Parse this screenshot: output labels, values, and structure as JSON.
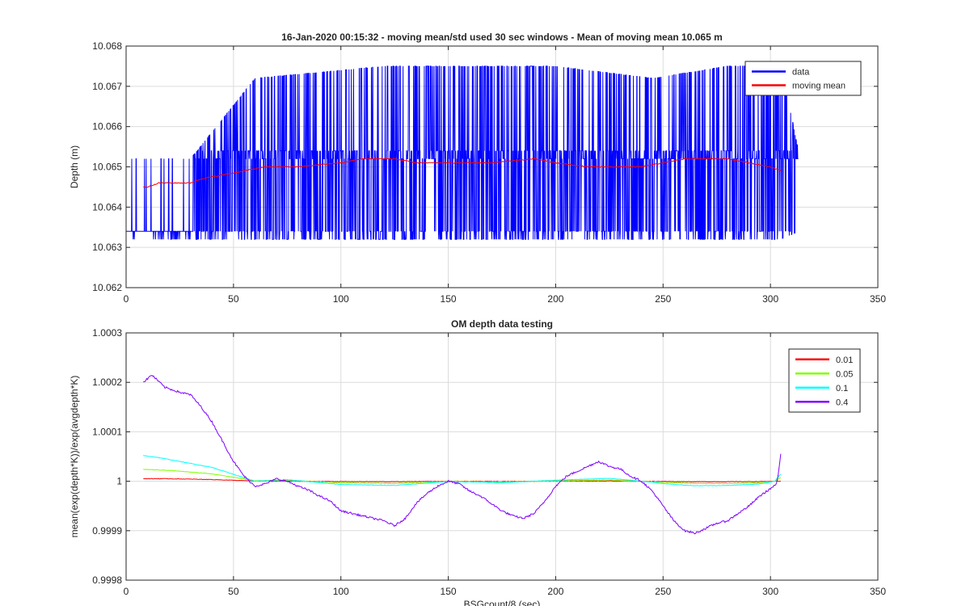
{
  "chart_data": [
    {
      "type": "line",
      "title": "16-Jan-2020 00:15:32 - moving mean/std used 30 sec windows - Mean of moving mean 10.065 m",
      "xlabel": "",
      "ylabel": "Depth (m)",
      "xlim": [
        0,
        350
      ],
      "ylim": [
        10.062,
        10.068
      ],
      "xticks": [
        "0",
        "50",
        "100",
        "150",
        "200",
        "250",
        "300",
        "350"
      ],
      "yticks": [
        "10.062",
        "10.063",
        "10.064",
        "10.065",
        "10.066",
        "10.067",
        "10.068"
      ],
      "grid": true,
      "legend_position": "top-right",
      "series": [
        {
          "name": "data",
          "color": "#0000ff",
          "x_range": [
            0,
            313
          ],
          "levels": [
            10.0632,
            10.0634,
            10.0652,
            10.0654,
            10.0672,
            10.0675
          ],
          "envelope": {
            "x": [
              0,
              30,
              60,
              120,
              200,
              245,
              280,
              305,
              313
            ],
            "low": [
              10.0632,
              10.0632,
              10.0632,
              10.0632,
              10.0632,
              10.0632,
              10.0632,
              10.0632,
              10.0634
            ],
            "high": [
              10.0652,
              10.0652,
              10.0672,
              10.0675,
              10.0675,
              10.0672,
              10.0675,
              10.0675,
              10.0654
            ]
          },
          "spike_density": [
            [
              0,
              0.05
            ],
            [
              30,
              0.35
            ],
            [
              120,
              0.45
            ],
            [
              200,
              0.45
            ],
            [
              245,
              0.3
            ],
            [
              280,
              0.45
            ],
            [
              313,
              0.45
            ]
          ]
        },
        {
          "name": "moving mean",
          "color": "#ff0000",
          "x": [
            8,
            10,
            15,
            20,
            30,
            35,
            45,
            55,
            65,
            80,
            100,
            110,
            125,
            135,
            150,
            170,
            190,
            200,
            215,
            230,
            240,
            250,
            260,
            270,
            280,
            290,
            300,
            305
          ],
          "values": [
            10.0645,
            10.0645,
            10.0646,
            10.0646,
            10.0646,
            10.0647,
            10.0648,
            10.0649,
            10.065,
            10.065,
            10.0651,
            10.0652,
            10.0652,
            10.0651,
            10.0651,
            10.0651,
            10.0652,
            10.0651,
            10.065,
            10.065,
            10.065,
            10.0651,
            10.0652,
            10.0652,
            10.0652,
            10.0651,
            10.065,
            10.0649
          ]
        }
      ]
    },
    {
      "type": "line",
      "title": "OM depth data testing",
      "xlabel": "BSGcount/8 (sec)",
      "ylabel": "mean(exp(depth*K))/exp(avgdepth*K)",
      "xlim": [
        0,
        350
      ],
      "ylim": [
        0.9998,
        1.0003
      ],
      "xticks": [
        "0",
        "50",
        "100",
        "150",
        "200",
        "250",
        "300",
        "350"
      ],
      "yticks": [
        "0.9998",
        "0.9999",
        "1",
        "1.0001",
        "1.0002",
        "1.0003"
      ],
      "grid": true,
      "legend_position": "top-right",
      "series": [
        {
          "name": "0.01",
          "color": "#ff0000",
          "x": [
            8,
            20,
            40,
            50,
            60,
            75,
            100,
            125,
            150,
            175,
            200,
            225,
            240,
            255,
            265,
            280,
            295,
            302,
            305
          ],
          "values": [
            1.0000052,
            1.000005,
            1.0000035,
            1.000002,
            1.0000005,
            1.0000003,
            0.9999993,
            0.999999,
            1.0,
            0.9999997,
            1.0000002,
            1.0000005,
            1.0,
            0.9999993,
            0.999999,
            0.999999,
            0.9999993,
            1.0,
            1.0000004
          ]
        },
        {
          "name": "0.05",
          "color": "#7fff00",
          "x": [
            8,
            20,
            40,
            50,
            60,
            75,
            100,
            125,
            150,
            175,
            200,
            225,
            240,
            255,
            265,
            280,
            295,
            302,
            305
          ],
          "values": [
            1.000024,
            1.000022,
            1.000015,
            1.000008,
            1.000001,
            1.000002,
            0.999997,
            0.9999955,
            1.0,
            0.9999985,
            1.000001,
            1.0000025,
            1.0,
            0.999997,
            0.9999955,
            0.9999955,
            0.999997,
            1.0,
            1.000008
          ]
        },
        {
          "name": "0.1",
          "color": "#00ffff",
          "x": [
            8,
            15,
            25,
            40,
            50,
            60,
            75,
            100,
            125,
            150,
            175,
            200,
            225,
            240,
            255,
            265,
            280,
            295,
            302,
            305
          ],
          "values": [
            1.000052,
            1.000048,
            1.00004,
            1.000028,
            1.000014,
            1.0,
            1.000003,
            0.9999935,
            0.9999915,
            0.9999995,
            0.999997,
            1.000002,
            1.000006,
            1.0,
            0.9999935,
            0.999991,
            0.9999915,
            0.9999945,
            1.0,
            1.000016
          ]
        },
        {
          "name": "0.4",
          "color": "#7f00ff",
          "x": [
            8,
            12,
            18,
            25,
            30,
            35,
            40,
            45,
            50,
            55,
            60,
            65,
            70,
            75,
            80,
            85,
            90,
            95,
            100,
            105,
            110,
            115,
            120,
            125,
            130,
            135,
            140,
            145,
            150,
            155,
            160,
            165,
            170,
            175,
            180,
            185,
            190,
            195,
            200,
            205,
            210,
            215,
            220,
            225,
            230,
            235,
            240,
            245,
            250,
            255,
            260,
            265,
            270,
            275,
            280,
            285,
            290,
            295,
            300,
            303,
            305
          ],
          "values": [
            1.0002,
            1.000215,
            1.00019,
            1.00018,
            1.000175,
            1.00015,
            1.00012,
            1.00008,
            1.00004,
            1.00001,
            0.99999,
            0.999995,
            1.000005,
            1.0,
            0.99999,
            0.999982,
            0.99997,
            0.99996,
            0.99994,
            0.999935,
            0.99993,
            0.999925,
            0.99992,
            0.99991,
            0.999925,
            0.999955,
            0.999975,
            0.99999,
            1.0,
            0.999995,
            0.99998,
            0.99997,
            0.999955,
            0.99994,
            0.99993,
            0.999925,
            0.999935,
            0.99996,
            0.99999,
            1.00001,
            1.00002,
            1.00003,
            1.00004,
            1.00003,
            1.000025,
            1.00001,
            1.0,
            0.99998,
            0.99995,
            0.99992,
            0.9999,
            0.999895,
            0.999905,
            0.999915,
            0.99992,
            0.999935,
            0.99995,
            0.99997,
            0.999985,
            0.999995,
            1.00006
          ]
        }
      ]
    }
  ]
}
